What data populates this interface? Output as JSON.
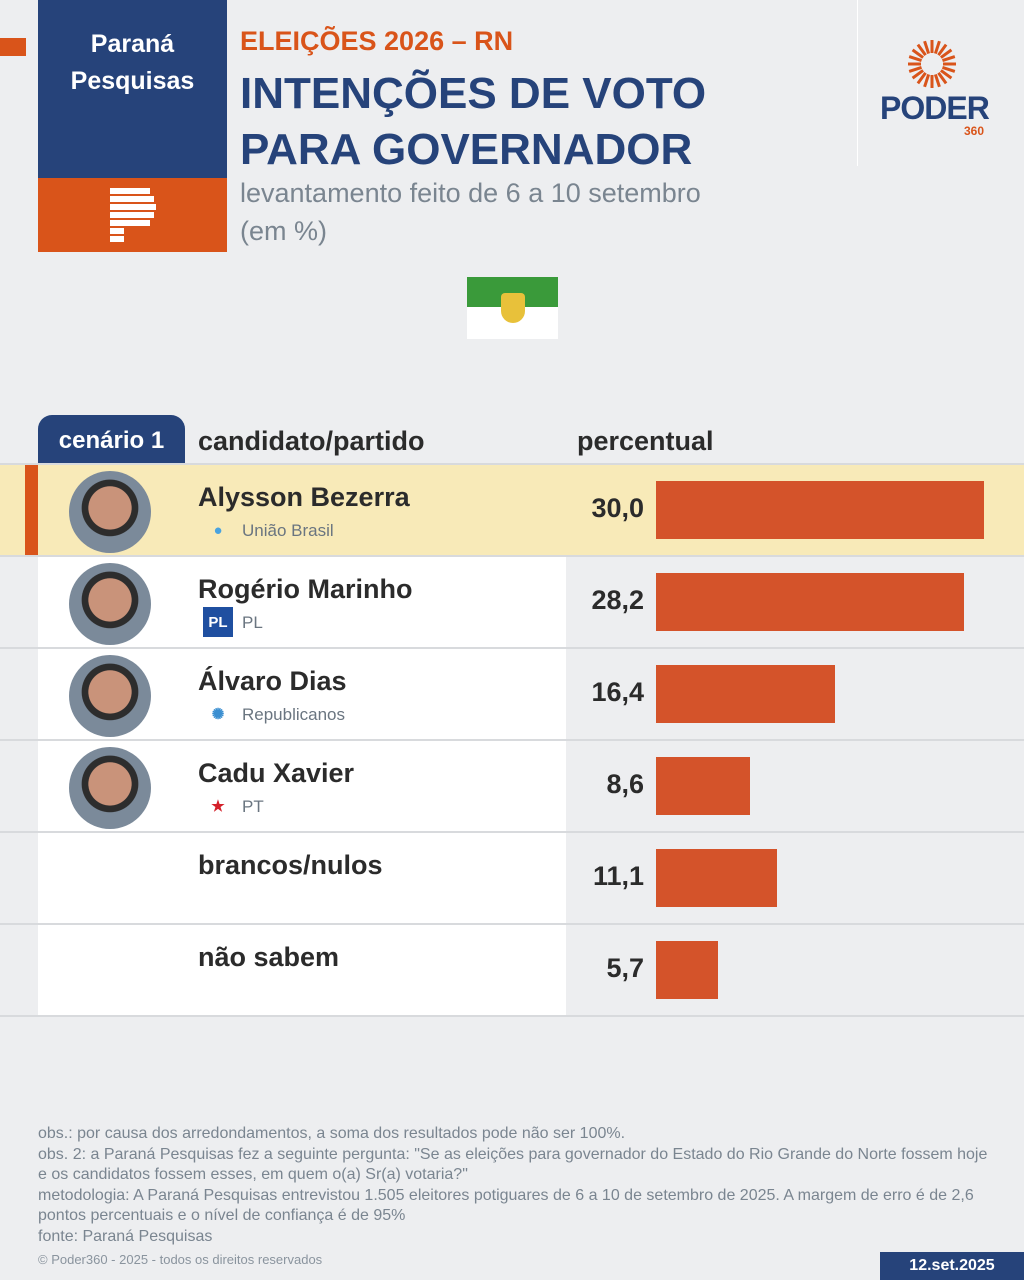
{
  "header": {
    "brand": "Paraná Pesquisas",
    "kicker": "ELEIÇÕES 2026 – RN",
    "title_line1": "INTENÇÕES DE VOTO",
    "title_line2": "PARA GOVERNADOR",
    "subtitle_line1": "levantamento feito de 6 a 10 setembro",
    "subtitle_line2": "(em %)",
    "logo": "PODER",
    "logo_sub": "360"
  },
  "table": {
    "scenario": "cenário 1",
    "col_candidate": "candidato/partido",
    "col_percent": "percentual"
  },
  "chart_data": {
    "type": "bar",
    "title": "INTENÇÕES DE VOTO PARA GOVERNADOR",
    "xlabel": "",
    "ylabel": "percentual",
    "xlim": [
      0,
      30
    ],
    "categories": [
      "Alysson Bezerra",
      "Rogério Marinho",
      "Álvaro Dias",
      "Cadu Xavier",
      "brancos/nulos",
      "não sabem"
    ],
    "parties": [
      "União Brasil",
      "PL",
      "Republicanos",
      "PT",
      "",
      ""
    ],
    "values": [
      30.0,
      28.2,
      16.4,
      8.6,
      11.1,
      5.7
    ],
    "labels": [
      "30,0",
      "28,2",
      "16,4",
      "8,6",
      "11,1",
      "5,7"
    ],
    "bar_color": "#d4532a",
    "highlight_color": "#f8eab8"
  },
  "notes": [
    "obs.: por causa dos arredondamentos, a soma dos resultados pode não ser 100%.",
    "obs. 2: a Paraná Pesquisas fez a seguinte pergunta: \"Se as eleições para governador do Estado do Rio Grande do Norte fossem hoje e os candidatos fossem esses, em quem o(a) Sr(a) votaria?\"",
    "metodologia: A Paraná Pesquisas entrevistou 1.505 eleitores potiguares de 6 a 10 de setembro de 2025. A margem de erro é de 2,6 pontos percentuais e o nível de confiança é de 95%",
    "fonte: Paraná Pesquisas"
  ],
  "footer": {
    "copyright": "© Poder360 - 2025 - todos os direitos reservados",
    "date": "12.set.2025"
  }
}
